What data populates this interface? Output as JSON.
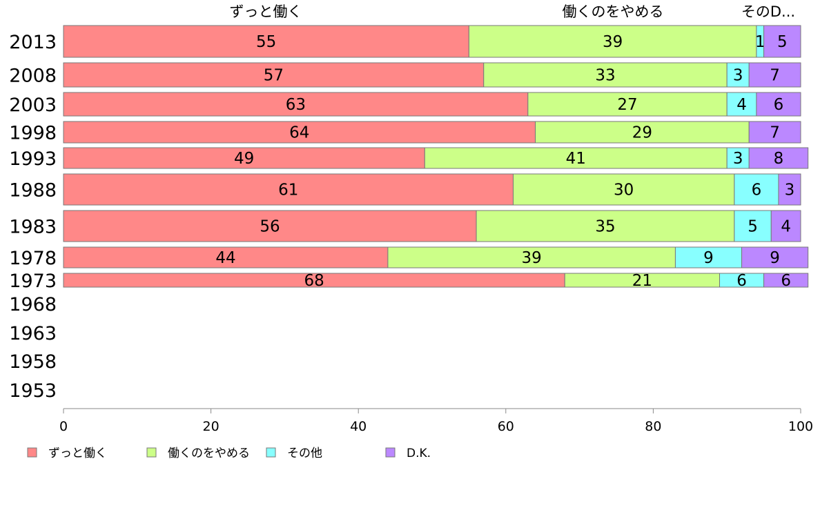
{
  "chart_data": {
    "type": "bar",
    "orientation": "horizontal",
    "stacked": true,
    "categories": [
      "2013",
      "2008",
      "2003",
      "1998",
      "1993",
      "1988",
      "1983",
      "1978",
      "1973",
      "1968",
      "1963",
      "1958",
      "1953"
    ],
    "series": [
      {
        "name": "ずっと働く",
        "color": "#FF8888",
        "values": [
          55,
          57,
          63,
          64,
          49,
          61,
          56,
          44,
          68,
          null,
          null,
          null,
          null
        ]
      },
      {
        "name": "働くのをやめる",
        "color": "#CCFF88",
        "values": [
          39,
          33,
          27,
          29,
          41,
          30,
          35,
          39,
          21,
          null,
          null,
          null,
          null
        ]
      },
      {
        "name": "その他",
        "color": "#88FFFF",
        "values": [
          1,
          3,
          4,
          0,
          3,
          6,
          5,
          9,
          6,
          null,
          null,
          null,
          null
        ]
      },
      {
        "name": "D.K.",
        "color": "#BB88FF",
        "values": [
          5,
          7,
          6,
          7,
          8,
          3,
          4,
          9,
          6,
          null,
          null,
          null,
          null
        ]
      }
    ],
    "top_labels": [
      "ずっと働く",
      "働くのをやめる",
      "そのD..."
    ],
    "xlim": [
      0,
      100
    ],
    "xticks": [
      0,
      20,
      40,
      60,
      80,
      100
    ],
    "legend": {
      "position": "bottom-left",
      "items": [
        "ずっと働く",
        "働くのをやめる",
        "その他",
        "D.K."
      ]
    },
    "grid": false,
    "title": "",
    "xlabel": "",
    "ylabel": ""
  }
}
